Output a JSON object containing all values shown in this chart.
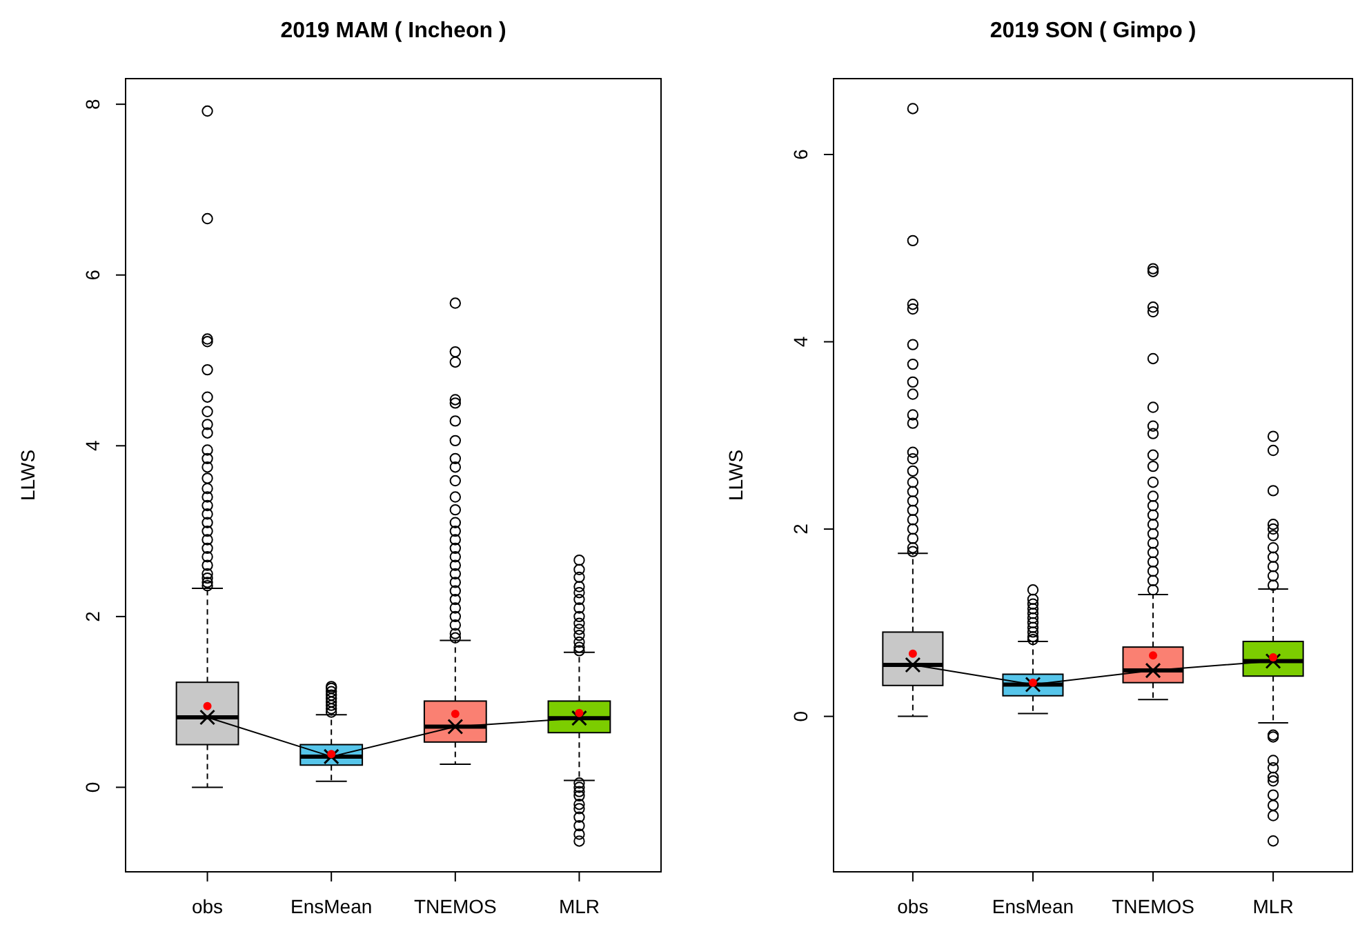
{
  "chart_data": [
    {
      "type": "box",
      "title": "2019 MAM ( Incheon )",
      "ylabel": "LLWS",
      "categories": [
        "obs",
        "EnsMean",
        "TNEMOS",
        "MLR"
      ],
      "ylim": [
        -0.99,
        8.3
      ],
      "yticks": [
        0,
        2,
        4,
        6,
        8
      ],
      "grid": false,
      "series": [
        {
          "colors": [
            "#c8c8c8",
            "#56c5ea",
            "#fa8072",
            "#7ccd00"
          ],
          "boxes": [
            {
              "low": 0,
              "q1": 0.5,
              "median": 0.82,
              "q3": 1.23,
              "high": 2.33,
              "outliers": [
                7.92,
                6.66,
                5.25,
                5.22,
                4.89,
                4.57,
                4.4,
                4.25,
                4.15,
                3.95,
                3.85,
                3.75,
                3.62,
                3.5,
                3.4,
                3.3,
                3.2,
                3.1,
                3.0,
                2.9,
                2.8,
                2.7,
                2.6,
                2.5,
                2.45,
                2.4,
                2.36
              ]
            },
            {
              "low": 0.07,
              "q1": 0.26,
              "median": 0.36,
              "q3": 0.5,
              "high": 0.85,
              "outliers": [
                0.88,
                0.92,
                0.96,
                1.0,
                1.04,
                1.08,
                1.12,
                1.16,
                1.18
              ]
            },
            {
              "low": 0.27,
              "q1": 0.53,
              "median": 0.71,
              "q3": 1.01,
              "high": 1.72,
              "outliers": [
                5.67,
                5.1,
                4.98,
                4.54,
                4.5,
                4.29,
                4.06,
                3.85,
                3.75,
                3.59,
                3.4,
                3.25,
                3.1,
                3.0,
                2.9,
                2.8,
                2.7,
                2.6,
                2.5,
                2.4,
                2.3,
                2.2,
                2.1,
                2.0,
                1.9,
                1.8,
                1.75
              ]
            },
            {
              "low": 0.08,
              "q1": 0.64,
              "median": 0.81,
              "q3": 1.01,
              "high": 1.58,
              "outliers": [
                2.66,
                2.55,
                2.46,
                2.35,
                2.28,
                2.2,
                2.1,
                2.0,
                1.92,
                1.85,
                1.78,
                1.7,
                1.64,
                1.6,
                0.05,
                0.0,
                -0.05,
                -0.1,
                -0.2,
                -0.25,
                -0.35,
                -0.45,
                -0.55,
                -0.63
              ]
            }
          ]
        },
        {
          "type": "line",
          "color": "#000000",
          "marker": "cross",
          "values": [
            0.82,
            0.36,
            0.71,
            0.81
          ]
        },
        {
          "type": "scatter",
          "color": "#ff0000",
          "marker": "circle",
          "values": [
            0.95,
            0.39,
            0.86,
            0.87
          ]
        }
      ]
    },
    {
      "type": "box",
      "title": "2019 SON ( Gimpo )",
      "ylabel": "LLWS",
      "categories": [
        "obs",
        "EnsMean",
        "TNEMOS",
        "MLR"
      ],
      "ylim": [
        -1.66,
        6.81
      ],
      "yticks": [
        0,
        2,
        4,
        6
      ],
      "grid": false,
      "series": [
        {
          "colors": [
            "#c8c8c8",
            "#56c5ea",
            "#fa8072",
            "#7ccd00"
          ],
          "boxes": [
            {
              "low": 0,
              "q1": 0.33,
              "median": 0.55,
              "q3": 0.9,
              "high": 1.74,
              "outliers": [
                6.49,
                5.08,
                4.4,
                4.35,
                3.97,
                3.76,
                3.57,
                3.44,
                3.22,
                3.13,
                2.82,
                2.75,
                2.62,
                2.5,
                2.4,
                2.3,
                2.2,
                2.1,
                2.0,
                1.9,
                1.8,
                1.76
              ]
            },
            {
              "low": 0.03,
              "q1": 0.22,
              "median": 0.34,
              "q3": 0.45,
              "high": 0.8,
              "outliers": [
                1.35,
                1.25,
                1.2,
                1.15,
                1.1,
                1.05,
                1.0,
                0.95,
                0.9,
                0.85,
                0.82
              ]
            },
            {
              "low": 0.18,
              "q1": 0.36,
              "median": 0.49,
              "q3": 0.74,
              "high": 1.3,
              "outliers": [
                4.78,
                4.75,
                4.37,
                4.32,
                3.82,
                3.3,
                3.1,
                3.02,
                2.79,
                2.67,
                2.5,
                2.35,
                2.25,
                2.15,
                2.05,
                1.95,
                1.85,
                1.75,
                1.65,
                1.55,
                1.45,
                1.35
              ]
            },
            {
              "low": -0.07,
              "q1": 0.43,
              "median": 0.59,
              "q3": 0.8,
              "high": 1.36,
              "outliers": [
                2.99,
                2.84,
                2.41,
                2.05,
                2.0,
                1.93,
                1.8,
                1.7,
                1.6,
                1.5,
                1.4,
                -0.2,
                -0.22,
                -0.47,
                -0.55,
                -0.65,
                -0.69,
                -0.84,
                -0.95,
                -1.06,
                -1.33
              ]
            }
          ]
        },
        {
          "type": "line",
          "color": "#000000",
          "marker": "cross",
          "values": [
            0.55,
            0.34,
            0.49,
            0.59
          ]
        },
        {
          "type": "scatter",
          "color": "#ff0000",
          "marker": "circle",
          "values": [
            0.67,
            0.36,
            0.65,
            0.63
          ]
        }
      ]
    }
  ]
}
